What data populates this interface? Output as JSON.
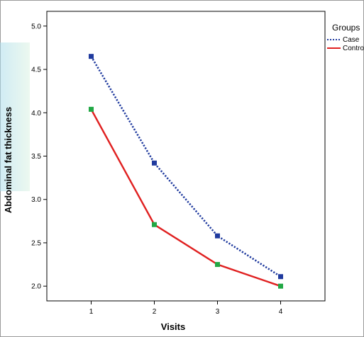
{
  "chart_data": {
    "type": "line",
    "categories": [
      "1",
      "2",
      "3",
      "4"
    ],
    "series": [
      {
        "name": "Case",
        "values": [
          4.65,
          3.42,
          2.58,
          2.11
        ],
        "color": "#1f3a9e",
        "dash": "dotted",
        "marker_color": "#1f3a9e"
      },
      {
        "name": "Control",
        "values": [
          4.04,
          2.71,
          2.25,
          2.0
        ],
        "color": "#e02020",
        "dash": "solid",
        "marker_color": "#22a845"
      }
    ],
    "title": "",
    "xlabel": "Visits",
    "ylabel": "Abdominal fat thickness",
    "ylim": [
      1.83,
      5.17
    ],
    "yticks": [
      "2.0",
      "2.5",
      "3.0",
      "3.5",
      "4.0",
      "4.5",
      "5.0"
    ],
    "grid": false,
    "legend": {
      "title": "Groups",
      "placement": "top-right"
    }
  }
}
